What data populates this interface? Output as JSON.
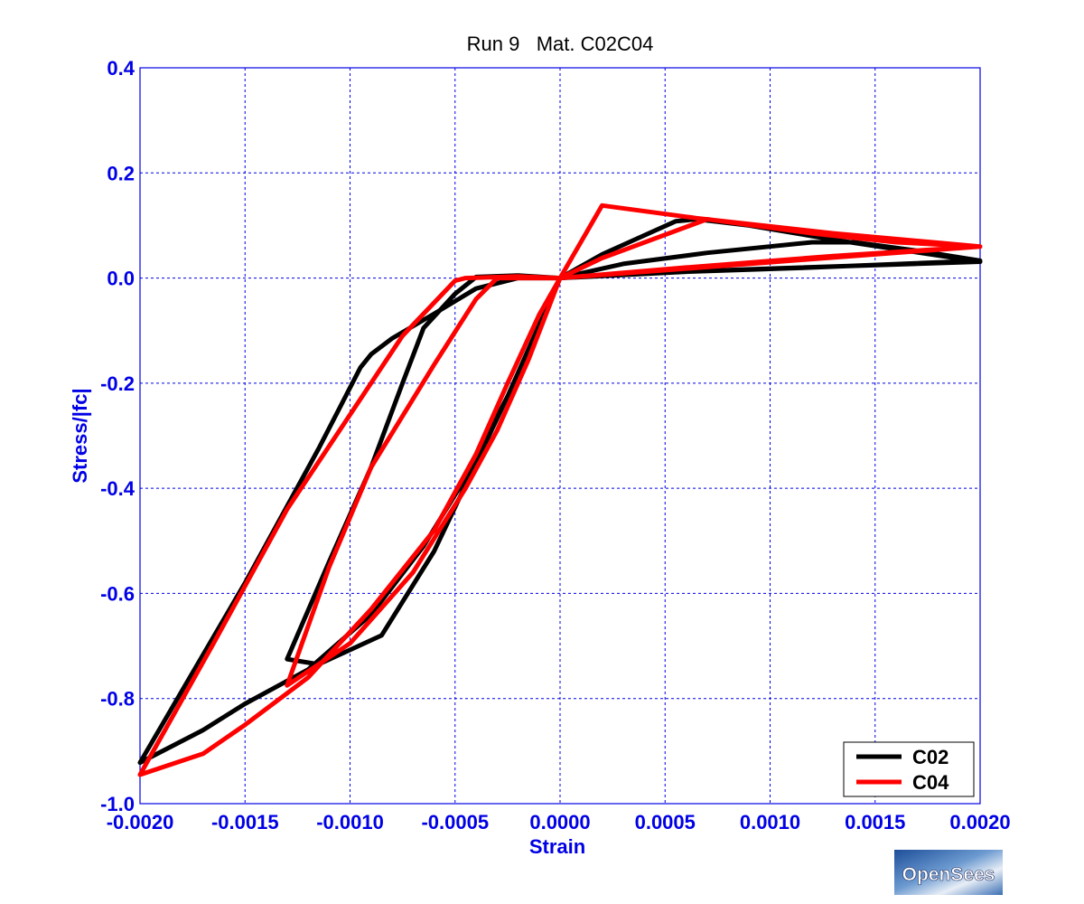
{
  "chart_data": {
    "type": "line",
    "title": "Run 9   Mat. C02C04",
    "xlabel": "Strain",
    "ylabel": "Stress/|fc|",
    "xlim": [
      -0.002,
      0.002
    ],
    "ylim": [
      -1.0,
      0.4
    ],
    "x_ticks": [
      "-0.0020",
      "-0.0015",
      "-0.0010",
      "-0.0005",
      "0.0000",
      "0.0005",
      "0.0010",
      "0.0015",
      "0.0020"
    ],
    "y_ticks": [
      "0.4",
      "0.2",
      "0.0",
      "-0.2",
      "-0.4",
      "-0.6",
      "-0.8",
      "-1.0"
    ],
    "grid": true,
    "legend_position": "bottom-right",
    "colors": {
      "axis_text": "#0000e6",
      "grid": "#0000e6",
      "C02": "#000000",
      "C04": "#ff0000"
    },
    "series": [
      {
        "name": "C02",
        "color": "#000000",
        "points": [
          [
            0,
            0
          ],
          [
            0.0002,
            0.045
          ],
          [
            0.00055,
            0.108
          ],
          [
            0.00065,
            0.112
          ],
          [
            0.0009,
            0.1
          ],
          [
            0.0013,
            0.073
          ],
          [
            0.0016,
            0.055
          ],
          [
            0.002,
            0.031
          ],
          [
            0.001,
            0.018
          ],
          [
            0.0005,
            0.011
          ],
          [
            0,
            0
          ],
          [
            -0.0001,
            -0.09
          ],
          [
            -0.00025,
            -0.225
          ],
          [
            -0.00045,
            -0.38
          ],
          [
            -0.00065,
            -0.51
          ],
          [
            -0.0009,
            -0.64
          ],
          [
            -0.0012,
            -0.745
          ],
          [
            -0.0015,
            -0.81
          ],
          [
            -0.0017,
            -0.86
          ],
          [
            -0.002,
            -0.922
          ],
          [
            -0.0015,
            -0.58
          ],
          [
            -0.00115,
            -0.325
          ],
          [
            -0.00095,
            -0.17
          ],
          [
            -0.0009,
            -0.145
          ],
          [
            -0.0008,
            -0.115
          ],
          [
            -0.0006,
            -0.068
          ],
          [
            -0.0004,
            -0.02
          ],
          [
            -0.0002,
            0
          ],
          [
            0,
            0
          ],
          [
            0.0003,
            0.027
          ],
          [
            0.0007,
            0.048
          ],
          [
            0.0012,
            0.068
          ],
          [
            0.0014,
            0.068
          ],
          [
            0.0017,
            0.052
          ],
          [
            0.002,
            0.033
          ],
          [
            0.0012,
            0.02
          ],
          [
            0.0006,
            0.012
          ],
          [
            0,
            0
          ],
          [
            -0.00015,
            -0.14
          ],
          [
            -0.00035,
            -0.31
          ],
          [
            -0.0006,
            -0.52
          ],
          [
            -0.00085,
            -0.68
          ],
          [
            -0.00115,
            -0.735
          ],
          [
            -0.0013,
            -0.725
          ],
          [
            -0.0011,
            -0.54
          ],
          [
            -0.0009,
            -0.36
          ],
          [
            -0.00075,
            -0.2
          ],
          [
            -0.00065,
            -0.095
          ],
          [
            -0.0005,
            -0.03
          ],
          [
            -0.0004,
            0.002
          ],
          [
            -0.0002,
            0.005
          ],
          [
            0,
            0
          ]
        ]
      },
      {
        "name": "C04",
        "color": "#ff0000",
        "points": [
          [
            0,
            0
          ],
          [
            0.0002,
            0.138
          ],
          [
            0.00065,
            0.114
          ],
          [
            0.0013,
            0.085
          ],
          [
            0.002,
            0.06
          ],
          [
            0.001,
            0.03
          ],
          [
            0.0005,
            0.015
          ],
          [
            0,
            0
          ],
          [
            -0.0001,
            -0.07
          ],
          [
            -0.00025,
            -0.2
          ],
          [
            -0.0004,
            -0.335
          ],
          [
            -0.0006,
            -0.48
          ],
          [
            -0.0009,
            -0.63
          ],
          [
            -0.0012,
            -0.76
          ],
          [
            -0.0015,
            -0.85
          ],
          [
            -0.0017,
            -0.905
          ],
          [
            -0.002,
            -0.945
          ],
          [
            -0.00165,
            -0.695
          ],
          [
            -0.0013,
            -0.44
          ],
          [
            -0.001,
            -0.26
          ],
          [
            -0.00075,
            -0.11
          ],
          [
            -0.0005,
            -0.005
          ],
          [
            -0.00045,
            0
          ],
          [
            -0.0002,
            0.003
          ],
          [
            0,
            0
          ],
          [
            0.0002,
            0.038
          ],
          [
            0.0007,
            0.112
          ],
          [
            0.0012,
            0.085
          ],
          [
            0.0016,
            0.068
          ],
          [
            0.002,
            0.06
          ],
          [
            0.0013,
            0.042
          ],
          [
            0.0006,
            0.02
          ],
          [
            0,
            0
          ],
          [
            -0.00015,
            -0.155
          ],
          [
            -0.0003,
            -0.29
          ],
          [
            -0.00045,
            -0.4
          ],
          [
            -0.0007,
            -0.56
          ],
          [
            -0.001,
            -0.695
          ],
          [
            -0.0013,
            -0.775
          ],
          [
            -0.0011,
            -0.55
          ],
          [
            -0.0009,
            -0.36
          ],
          [
            -0.0006,
            -0.165
          ],
          [
            -0.0004,
            -0.04
          ],
          [
            -0.0003,
            0
          ],
          [
            0,
            0
          ]
        ]
      }
    ]
  },
  "logo": {
    "text": "OpenSees"
  }
}
